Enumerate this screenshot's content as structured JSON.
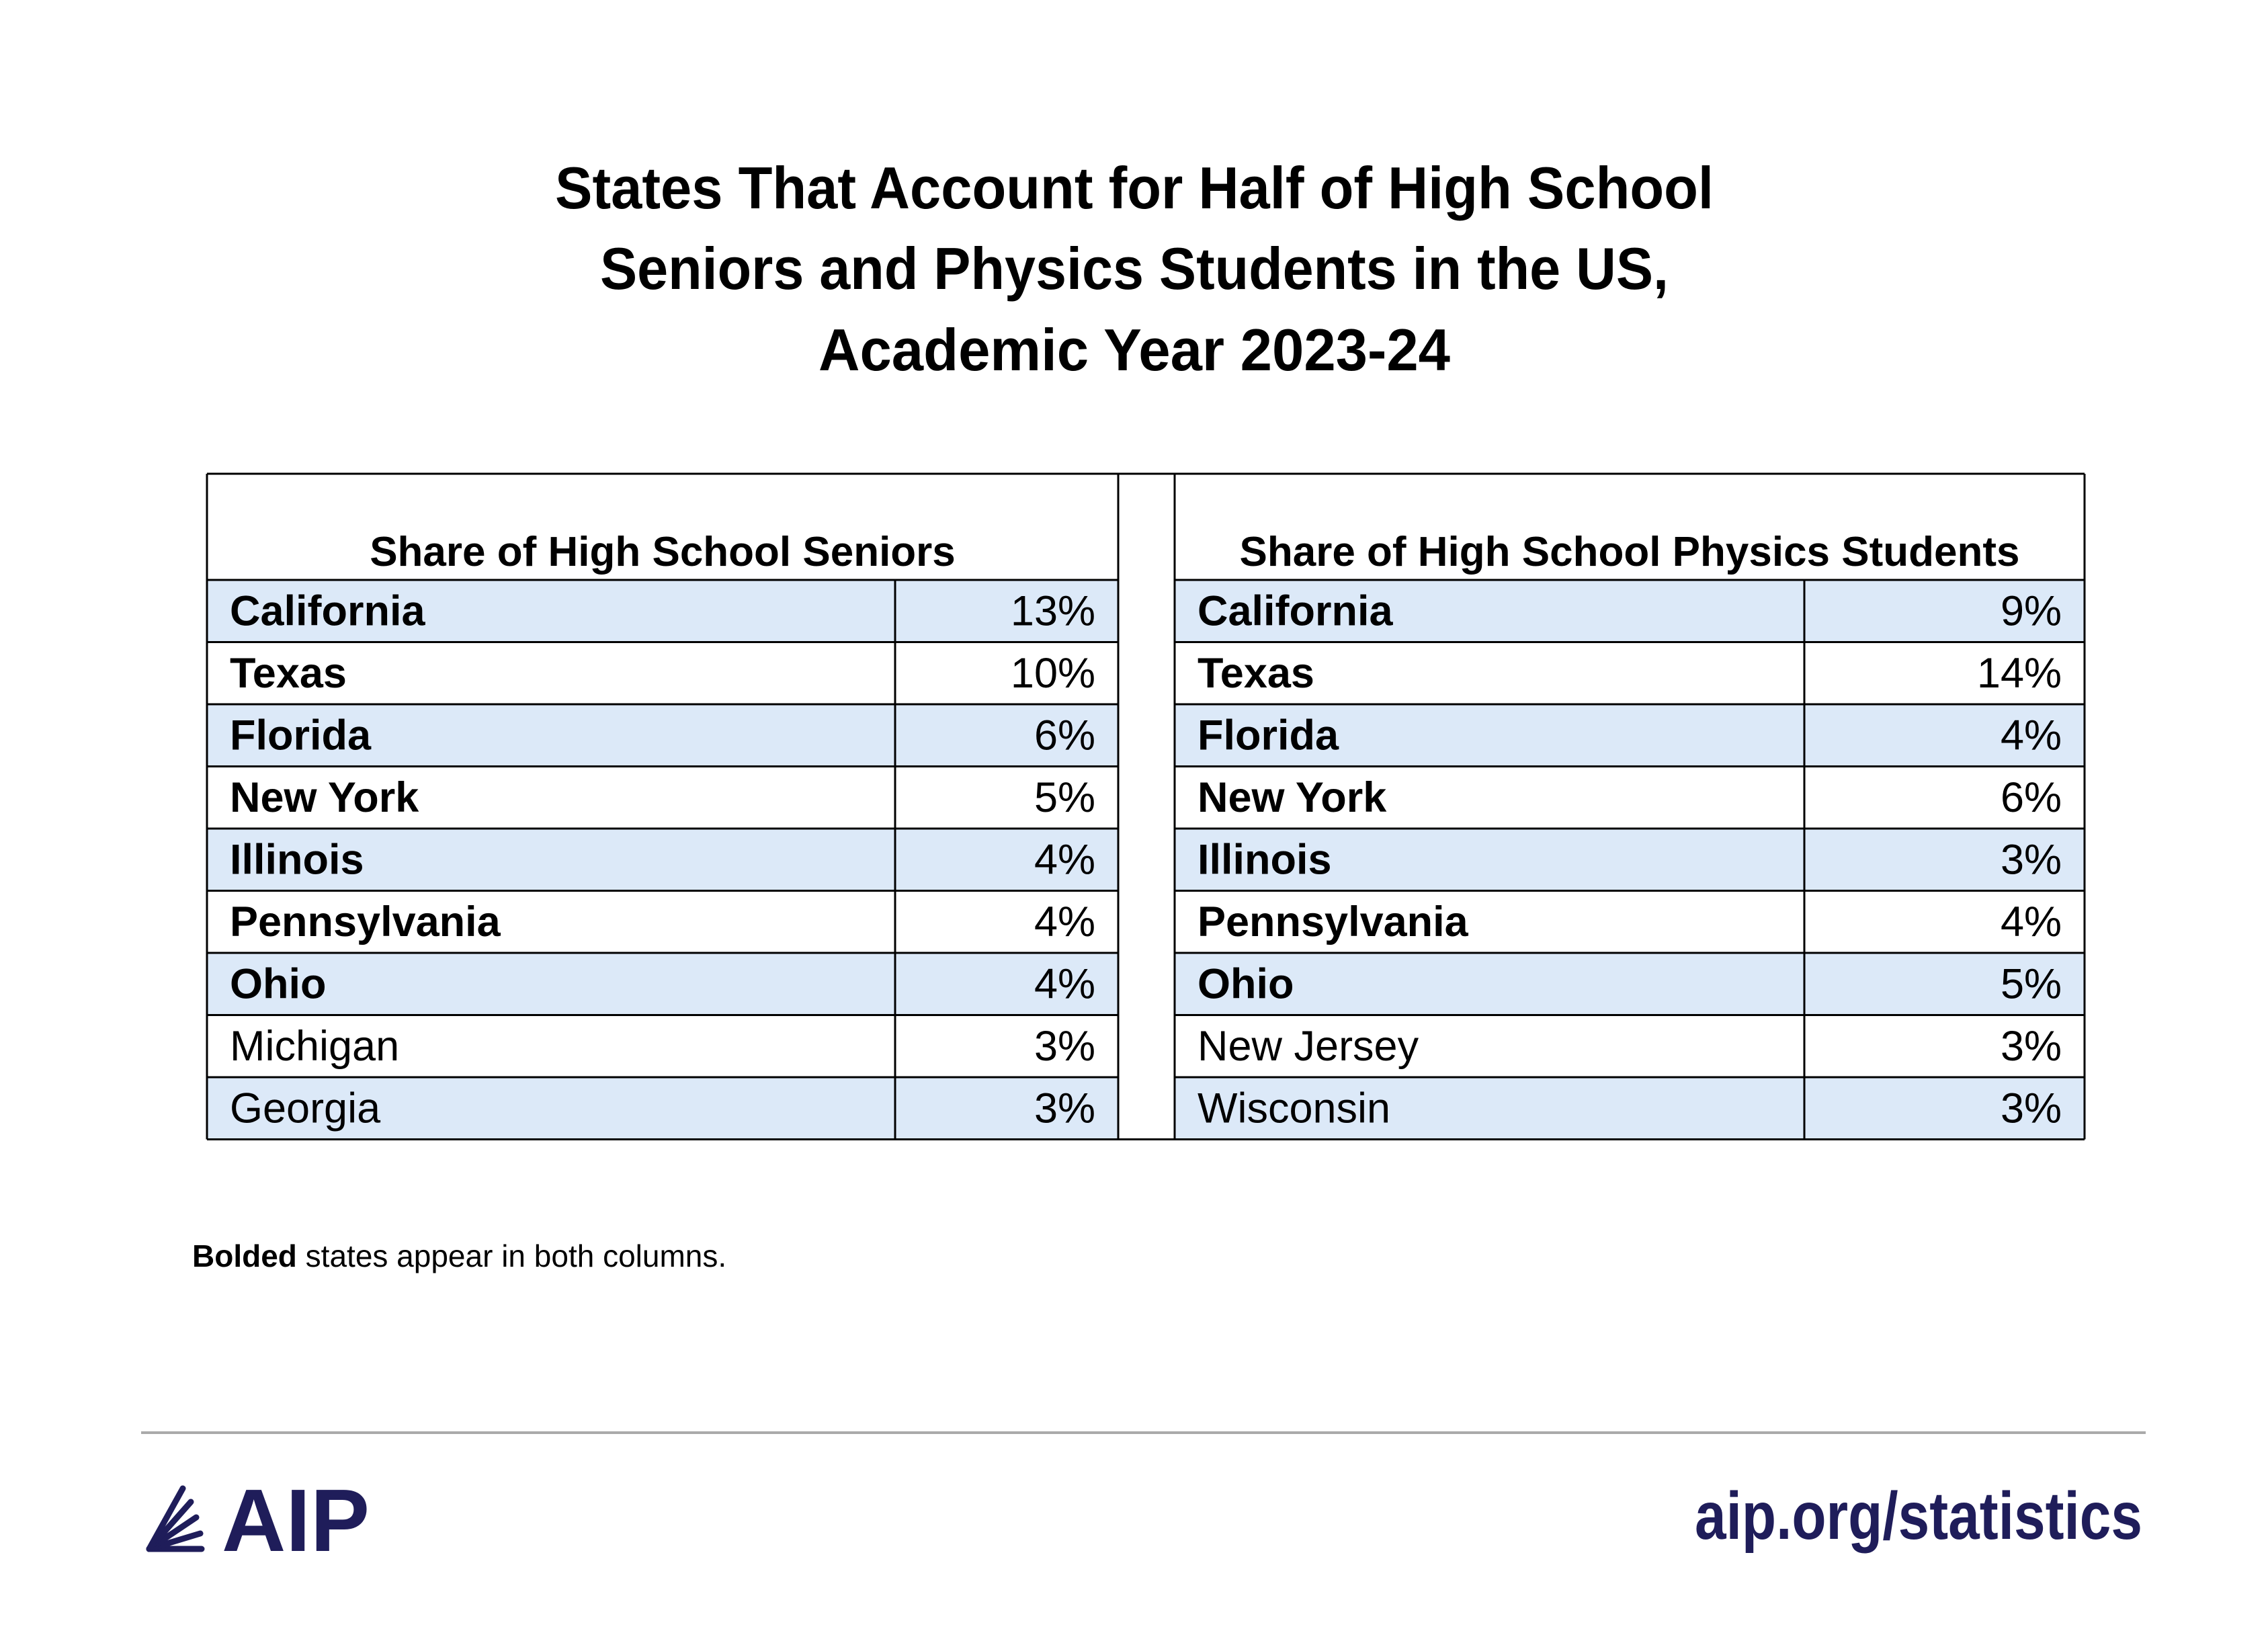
{
  "header": {
    "title_lines": [
      "States That Account for Half of High School",
      "Seniors and Physics Students in the US,",
      "Academic Year 2023-24"
    ]
  },
  "tables": [
    {
      "heading": "Share of High School Seniors",
      "rows": [
        {
          "state": "California",
          "share": "13%",
          "bold": true
        },
        {
          "state": "Texas",
          "share": "10%",
          "bold": true
        },
        {
          "state": "Florida",
          "share": "6%",
          "bold": true
        },
        {
          "state": "New York",
          "share": "5%",
          "bold": true
        },
        {
          "state": "Illinois",
          "share": "4%",
          "bold": true
        },
        {
          "state": "Pennsylvania",
          "share": "4%",
          "bold": true
        },
        {
          "state": "Ohio",
          "share": "4%",
          "bold": true
        },
        {
          "state": "Michigan",
          "share": "3%",
          "bold": false
        },
        {
          "state": "Georgia",
          "share": "3%",
          "bold": false
        }
      ]
    },
    {
      "heading": "Share of High School Physics Students",
      "rows": [
        {
          "state": "California",
          "share": "9%",
          "bold": true
        },
        {
          "state": "Texas",
          "share": "14%",
          "bold": true
        },
        {
          "state": "Florida",
          "share": "4%",
          "bold": true
        },
        {
          "state": "New York",
          "share": "6%",
          "bold": true
        },
        {
          "state": "Illinois",
          "share": "3%",
          "bold": true
        },
        {
          "state": "Pennsylvania",
          "share": "4%",
          "bold": true
        },
        {
          "state": "Ohio",
          "share": "5%",
          "bold": true
        },
        {
          "state": "New Jersey",
          "share": "3%",
          "bold": false
        },
        {
          "state": "Wisconsin",
          "share": "3%",
          "bold": false
        }
      ]
    }
  ],
  "footnote": {
    "bold_part": "Bolded",
    "rest": " states appear in both columns."
  },
  "footer": {
    "logo": "AIP",
    "url": "aip.org/statistics"
  }
}
